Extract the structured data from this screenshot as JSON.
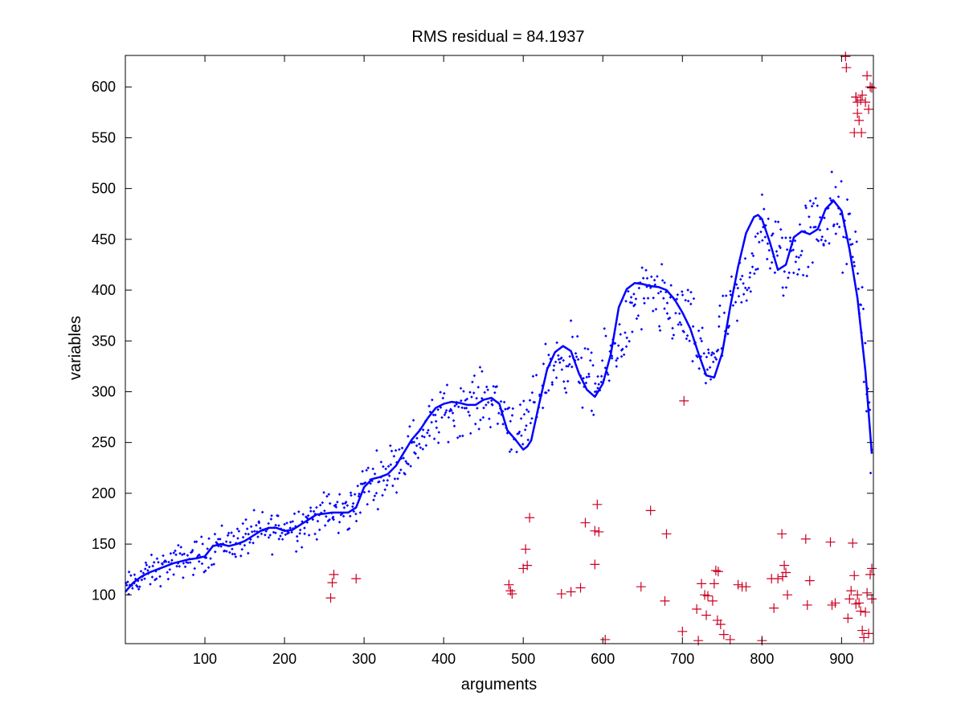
{
  "chart_data": {
    "type": "scatter",
    "title": "RMS residual = 84.1937",
    "xlabel": "arguments",
    "ylabel": "variables",
    "xlim": [
      0,
      940
    ],
    "ylim": [
      52,
      631
    ],
    "xticks": [
      100,
      200,
      300,
      400,
      500,
      600,
      700,
      800,
      900
    ],
    "yticks": [
      100,
      150,
      200,
      250,
      300,
      350,
      400,
      450,
      500,
      550,
      600
    ],
    "grid": false,
    "legend": "none",
    "series": [
      {
        "kind": "dots",
        "color": "#0000ff",
        "trend_knots": [
          [
            0,
            105
          ],
          [
            20,
            118
          ],
          [
            50,
            128
          ],
          [
            80,
            136
          ],
          [
            100,
            140
          ],
          [
            115,
            151
          ],
          [
            140,
            152
          ],
          [
            160,
            160
          ],
          [
            200,
            166
          ],
          [
            220,
            170
          ],
          [
            250,
            180
          ],
          [
            280,
            181
          ],
          [
            300,
            206
          ],
          [
            330,
            222
          ],
          [
            360,
            246
          ],
          [
            400,
            279
          ],
          [
            430,
            288
          ],
          [
            460,
            295
          ],
          [
            500,
            255
          ],
          [
            530,
            320
          ],
          [
            560,
            336
          ],
          [
            590,
            300
          ],
          [
            620,
            350
          ],
          [
            650,
            395
          ],
          [
            700,
            376
          ],
          [
            730,
            325
          ],
          [
            760,
            372
          ],
          [
            800,
            455
          ],
          [
            830,
            427
          ],
          [
            860,
            455
          ],
          [
            890,
            478
          ],
          [
            920,
            430
          ],
          [
            938,
            240
          ]
        ],
        "noise": 22,
        "count": 850
      },
      {
        "kind": "plus",
        "color": "#cc0022",
        "points": [
          [
            258,
            97
          ],
          [
            260,
            112
          ],
          [
            262,
            120
          ],
          [
            290,
            116
          ],
          [
            482,
            110
          ],
          [
            484,
            104
          ],
          [
            486,
            101
          ],
          [
            500,
            126
          ],
          [
            503,
            145
          ],
          [
            505,
            129
          ],
          [
            508,
            176
          ],
          [
            548,
            101
          ],
          [
            560,
            103
          ],
          [
            572,
            107
          ],
          [
            578,
            171
          ],
          [
            590,
            130
          ],
          [
            590,
            163
          ],
          [
            593,
            189
          ],
          [
            595,
            162
          ],
          [
            603,
            56
          ],
          [
            648,
            108
          ],
          [
            660,
            183
          ],
          [
            678,
            94
          ],
          [
            680,
            160
          ],
          [
            700,
            64
          ],
          [
            702,
            291
          ],
          [
            718,
            86
          ],
          [
            720,
            55
          ],
          [
            724,
            111
          ],
          [
            728,
            100
          ],
          [
            730,
            80
          ],
          [
            732,
            99
          ],
          [
            738,
            94
          ],
          [
            740,
            111
          ],
          [
            742,
            124
          ],
          [
            744,
            75
          ],
          [
            745,
            123
          ],
          [
            748,
            71
          ],
          [
            752,
            61
          ],
          [
            760,
            56
          ],
          [
            770,
            110
          ],
          [
            775,
            108
          ],
          [
            780,
            108
          ],
          [
            800,
            55
          ],
          [
            812,
            116
          ],
          [
            815,
            87
          ],
          [
            820,
            116
          ],
          [
            825,
            160
          ],
          [
            826,
            118
          ],
          [
            828,
            129
          ],
          [
            830,
            122
          ],
          [
            832,
            100
          ],
          [
            855,
            155
          ],
          [
            857,
            90
          ],
          [
            860,
            114
          ],
          [
            886,
            152
          ],
          [
            888,
            90
          ],
          [
            892,
            92
          ],
          [
            908,
            77
          ],
          [
            910,
            96
          ],
          [
            912,
            104
          ],
          [
            914,
            151
          ],
          [
            916,
            119
          ],
          [
            918,
            91
          ],
          [
            920,
            100
          ],
          [
            922,
            92
          ],
          [
            924,
            84
          ],
          [
            926,
            65
          ],
          [
            928,
            58
          ],
          [
            930,
            83
          ],
          [
            932,
            102
          ],
          [
            934,
            62
          ],
          [
            936,
            120
          ],
          [
            938,
            126
          ],
          [
            938,
            96
          ],
          [
            905,
            630
          ],
          [
            906,
            619
          ],
          [
            916,
            555
          ],
          [
            918,
            590
          ],
          [
            920,
            574
          ],
          [
            922,
            567
          ],
          [
            924,
            587
          ],
          [
            925,
            555
          ],
          [
            926,
            592
          ],
          [
            930,
            585
          ],
          [
            932,
            611
          ],
          [
            934,
            578
          ],
          [
            938,
            599
          ],
          [
            936,
            600
          ],
          [
            918,
            590
          ],
          [
            920,
            585
          ]
        ]
      },
      {
        "kind": "curve",
        "color": "#0000ff",
        "points": [
          [
            0,
            103
          ],
          [
            10,
            112
          ],
          [
            20,
            118
          ],
          [
            30,
            122
          ],
          [
            40,
            125
          ],
          [
            50,
            128
          ],
          [
            60,
            131
          ],
          [
            70,
            133
          ],
          [
            80,
            135
          ],
          [
            90,
            136
          ],
          [
            100,
            138
          ],
          [
            110,
            148
          ],
          [
            120,
            150
          ],
          [
            130,
            148
          ],
          [
            140,
            150
          ],
          [
            150,
            153
          ],
          [
            160,
            158
          ],
          [
            170,
            163
          ],
          [
            180,
            166
          ],
          [
            190,
            166
          ],
          [
            200,
            163
          ],
          [
            210,
            164
          ],
          [
            220,
            169
          ],
          [
            230,
            174
          ],
          [
            240,
            179
          ],
          [
            250,
            180
          ],
          [
            260,
            181
          ],
          [
            270,
            181
          ],
          [
            280,
            181
          ],
          [
            290,
            186
          ],
          [
            300,
            206
          ],
          [
            310,
            214
          ],
          [
            320,
            216
          ],
          [
            330,
            219
          ],
          [
            340,
            227
          ],
          [
            350,
            240
          ],
          [
            360,
            253
          ],
          [
            370,
            262
          ],
          [
            380,
            274
          ],
          [
            390,
            284
          ],
          [
            400,
            288
          ],
          [
            410,
            290
          ],
          [
            420,
            289
          ],
          [
            430,
            287
          ],
          [
            440,
            287
          ],
          [
            450,
            292
          ],
          [
            460,
            294
          ],
          [
            470,
            288
          ],
          [
            480,
            262
          ],
          [
            490,
            253
          ],
          [
            500,
            243
          ],
          [
            505,
            246
          ],
          [
            510,
            252
          ],
          [
            520,
            288
          ],
          [
            530,
            322
          ],
          [
            540,
            339
          ],
          [
            550,
            345
          ],
          [
            560,
            340
          ],
          [
            570,
            318
          ],
          [
            580,
            302
          ],
          [
            590,
            295
          ],
          [
            600,
            308
          ],
          [
            610,
            337
          ],
          [
            620,
            383
          ],
          [
            630,
            401
          ],
          [
            640,
            407
          ],
          [
            650,
            406
          ],
          [
            660,
            404
          ],
          [
            670,
            403
          ],
          [
            680,
            400
          ],
          [
            690,
            391
          ],
          [
            700,
            378
          ],
          [
            710,
            362
          ],
          [
            720,
            338
          ],
          [
            730,
            316
          ],
          [
            740,
            314
          ],
          [
            750,
            338
          ],
          [
            760,
            383
          ],
          [
            770,
            423
          ],
          [
            780,
            456
          ],
          [
            790,
            472
          ],
          [
            795,
            474
          ],
          [
            800,
            470
          ],
          [
            810,
            447
          ],
          [
            820,
            420
          ],
          [
            830,
            425
          ],
          [
            840,
            452
          ],
          [
            850,
            458
          ],
          [
            860,
            455
          ],
          [
            870,
            460
          ],
          [
            880,
            480
          ],
          [
            890,
            488
          ],
          [
            900,
            478
          ],
          [
            910,
            440
          ],
          [
            920,
            392
          ],
          [
            930,
            320
          ],
          [
            938,
            239
          ]
        ]
      }
    ]
  }
}
